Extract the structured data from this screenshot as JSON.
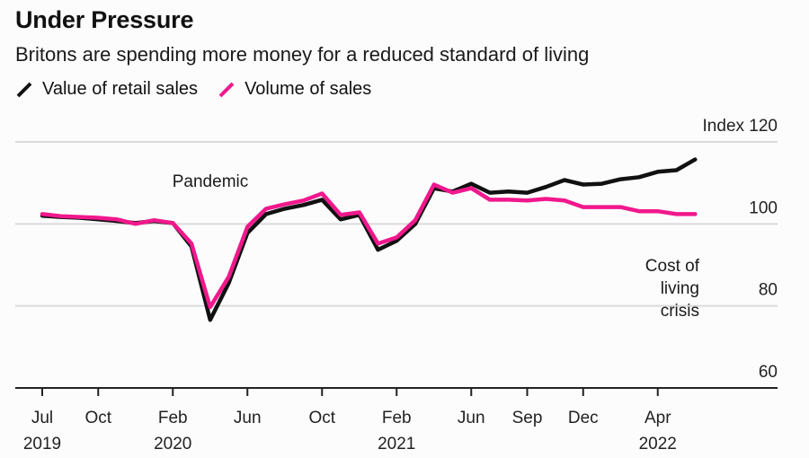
{
  "chart_data": {
    "type": "line",
    "title": "Under Pressure",
    "subtitle": "Britons are spending more money for a reduced standard of living",
    "ylabel": "Index",
    "ylim": [
      60,
      120
    ],
    "yticks": [
      60,
      80,
      100,
      120
    ],
    "ytick_labels": [
      "60",
      "80",
      "100",
      "Index 120"
    ],
    "grid": true,
    "legend_position": "top-left",
    "x": [
      "2019-07",
      "2019-08",
      "2019-09",
      "2019-10",
      "2019-11",
      "2019-12",
      "2020-01",
      "2020-02",
      "2020-03",
      "2020-04",
      "2020-05",
      "2020-06",
      "2020-07",
      "2020-08",
      "2020-09",
      "2020-10",
      "2020-11",
      "2020-12",
      "2021-01",
      "2021-02",
      "2021-03",
      "2021-04",
      "2021-05",
      "2021-06",
      "2021-07",
      "2021-08",
      "2021-09",
      "2021-10",
      "2021-11",
      "2021-12",
      "2022-01",
      "2022-02",
      "2022-03",
      "2022-04",
      "2022-05",
      "2022-06"
    ],
    "xticks": [
      {
        "x": "2019-07",
        "label": "Jul",
        "year": "2019"
      },
      {
        "x": "2019-10",
        "label": "Oct",
        "year": ""
      },
      {
        "x": "2020-02",
        "label": "Feb",
        "year": "2020"
      },
      {
        "x": "2020-06",
        "label": "Jun",
        "year": ""
      },
      {
        "x": "2020-10",
        "label": "Oct",
        "year": ""
      },
      {
        "x": "2021-02",
        "label": "Feb",
        "year": "2021"
      },
      {
        "x": "2021-06",
        "label": "Jun",
        "year": ""
      },
      {
        "x": "2021-09",
        "label": "Sep",
        "year": ""
      },
      {
        "x": "2021-12",
        "label": "Dec",
        "year": ""
      },
      {
        "x": "2022-04",
        "label": "Apr",
        "year": "2022"
      }
    ],
    "series": [
      {
        "name": "Value of retail sales",
        "color": "#111111",
        "values": [
          102.0,
          101.7,
          101.5,
          101.1,
          100.7,
          100.2,
          100.7,
          100.2,
          94.5,
          76.6,
          85.6,
          97.8,
          102.4,
          103.7,
          104.6,
          105.9,
          101.1,
          102.2,
          93.7,
          95.9,
          100.0,
          108.7,
          107.9,
          109.8,
          107.6,
          107.9,
          107.6,
          109.0,
          110.7,
          109.6,
          109.8,
          110.9,
          111.4,
          112.7,
          113.1,
          115.7
        ]
      },
      {
        "name": "Volume of sales",
        "color": "#f0188c",
        "values": [
          102.4,
          101.9,
          101.7,
          101.5,
          101.1,
          100.0,
          100.9,
          100.2,
          95.2,
          79.7,
          87.1,
          99.3,
          103.7,
          104.8,
          105.7,
          107.4,
          102.2,
          102.8,
          95.2,
          96.7,
          100.9,
          109.6,
          107.6,
          108.7,
          105.9,
          105.9,
          105.7,
          106.1,
          105.7,
          104.1,
          104.1,
          104.1,
          103.1,
          103.1,
          102.4,
          102.4
        ]
      }
    ],
    "annotations": [
      {
        "text": [
          "Pandemic"
        ],
        "near": "2020-04"
      },
      {
        "text": [
          "Cost of",
          "living",
          "crisis"
        ],
        "near": "2022-05"
      }
    ]
  },
  "header": {
    "title": "Under Pressure",
    "subtitle": "Britons are spending more money for a reduced standard of living"
  },
  "legend": {
    "items": [
      {
        "label": "Value of retail sales",
        "color": "#111111"
      },
      {
        "label": "Volume of sales",
        "color": "#f0188c"
      }
    ]
  }
}
